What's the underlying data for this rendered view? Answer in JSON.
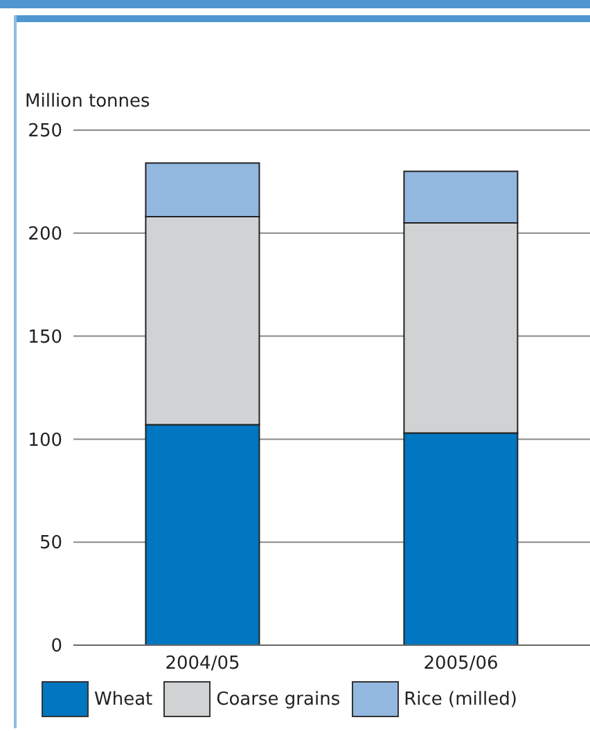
{
  "chart_data": {
    "type": "bar",
    "ylabel": "Million tonnes",
    "categories": [
      "2004/05",
      "2005/06"
    ],
    "stacked": true,
    "series": [
      {
        "name": "Wheat",
        "color": "#0077c0",
        "values": [
          107,
          103
        ]
      },
      {
        "name": "Coarse grains",
        "color": "#d1d2d4",
        "values": [
          101,
          102
        ]
      },
      {
        "name": "Rice (milled)",
        "color": "#93b8e0",
        "values": [
          26,
          25
        ]
      }
    ],
    "ylim": [
      0,
      250
    ],
    "yticks": [
      0,
      50,
      100,
      150,
      200,
      250
    ],
    "grid": "y",
    "legend": "bottom"
  }
}
